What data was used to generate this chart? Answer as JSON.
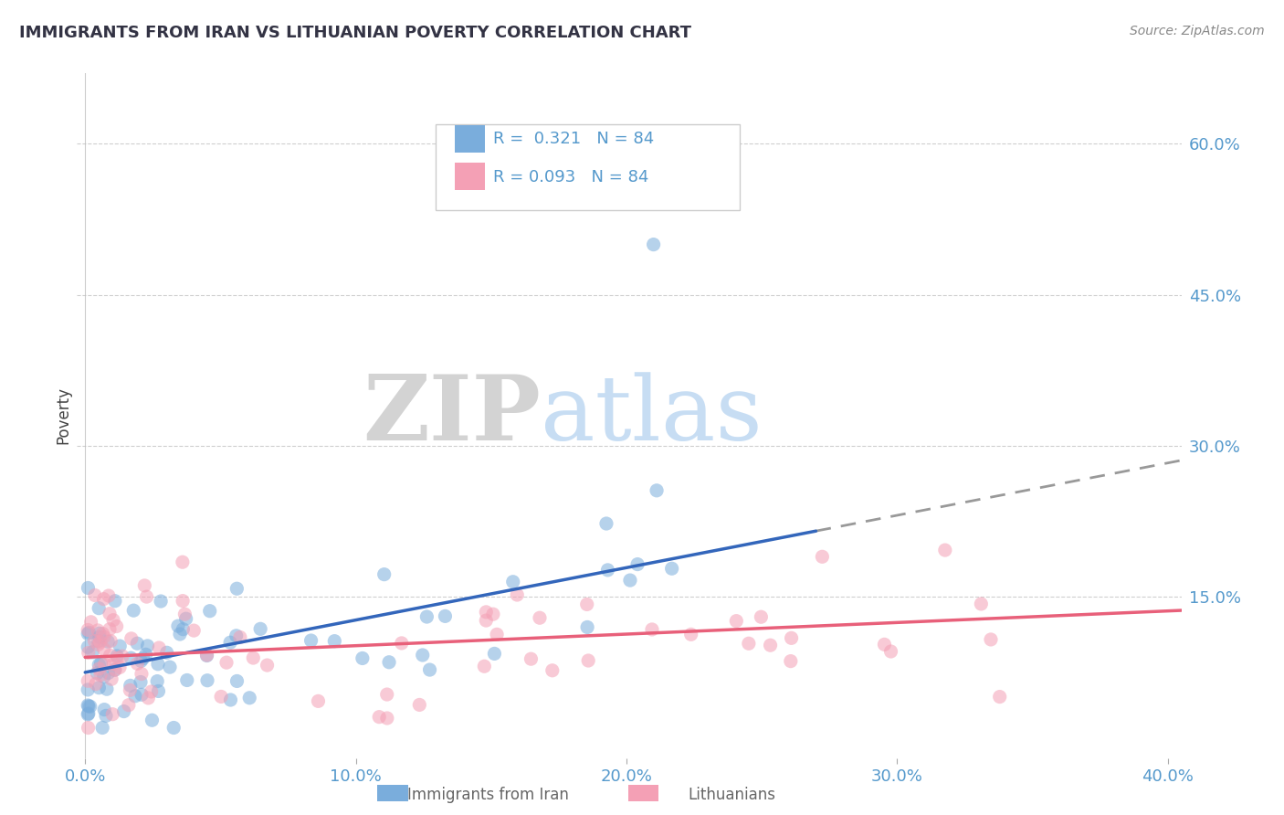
{
  "title": "IMMIGRANTS FROM IRAN VS LITHUANIAN POVERTY CORRELATION CHART",
  "source": "Source: ZipAtlas.com",
  "ylabel": "Poverty",
  "xlim": [
    -0.003,
    0.405
  ],
  "ylim": [
    -0.01,
    0.67
  ],
  "xticks": [
    0.0,
    0.1,
    0.2,
    0.3,
    0.4
  ],
  "ytick_positions": [
    0.15,
    0.3,
    0.45,
    0.6
  ],
  "grid_color": "#bbbbbb",
  "background_color": "#ffffff",
  "blue_color": "#7aaddc",
  "pink_color": "#f4a0b5",
  "axis_color": "#5599cc",
  "title_color": "#333344",
  "series1_label": "Immigrants from Iran",
  "series2_label": "Lithuanians",
  "watermark_zip": "ZIP",
  "watermark_atlas": "atlas",
  "blue_line_intercept": 0.075,
  "blue_line_slope": 0.52,
  "blue_line_solid_end": 0.27,
  "blue_line_dash_end": 0.405,
  "pink_line_intercept": 0.09,
  "pink_line_slope": 0.115,
  "pink_line_end": 0.405
}
